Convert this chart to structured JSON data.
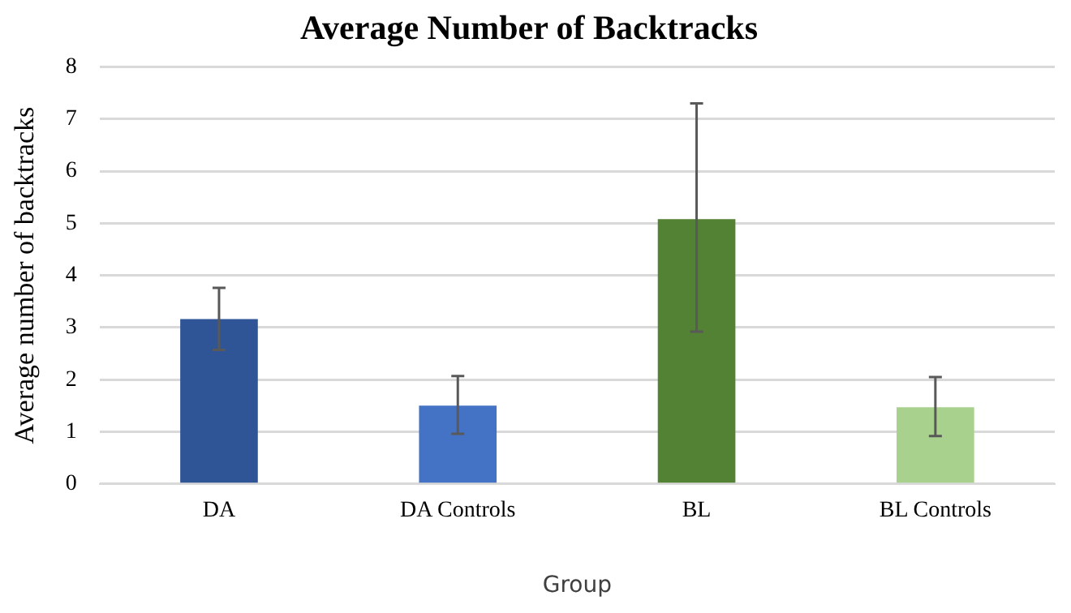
{
  "chart_data": {
    "type": "bar",
    "title": "Average Number of Backtracks",
    "xlabel": "Group",
    "ylabel": "Average number of backtracks",
    "categories": [
      "DA",
      "DA Controls",
      "BL",
      "BL Controls"
    ],
    "values": [
      3.16,
      1.5,
      5.08,
      1.47
    ],
    "colors": [
      "#2f5597",
      "#4472c4",
      "#548235",
      "#a9d18e"
    ],
    "errors": [
      [
        2.57,
        3.76
      ],
      [
        0.96,
        2.07
      ],
      [
        2.92,
        7.3
      ],
      [
        0.92,
        2.05
      ]
    ],
    "ylim": [
      0,
      8
    ],
    "yticks": [
      0,
      1,
      2,
      3,
      4,
      5,
      6,
      7,
      8
    ],
    "grid": "y",
    "legend": false
  }
}
